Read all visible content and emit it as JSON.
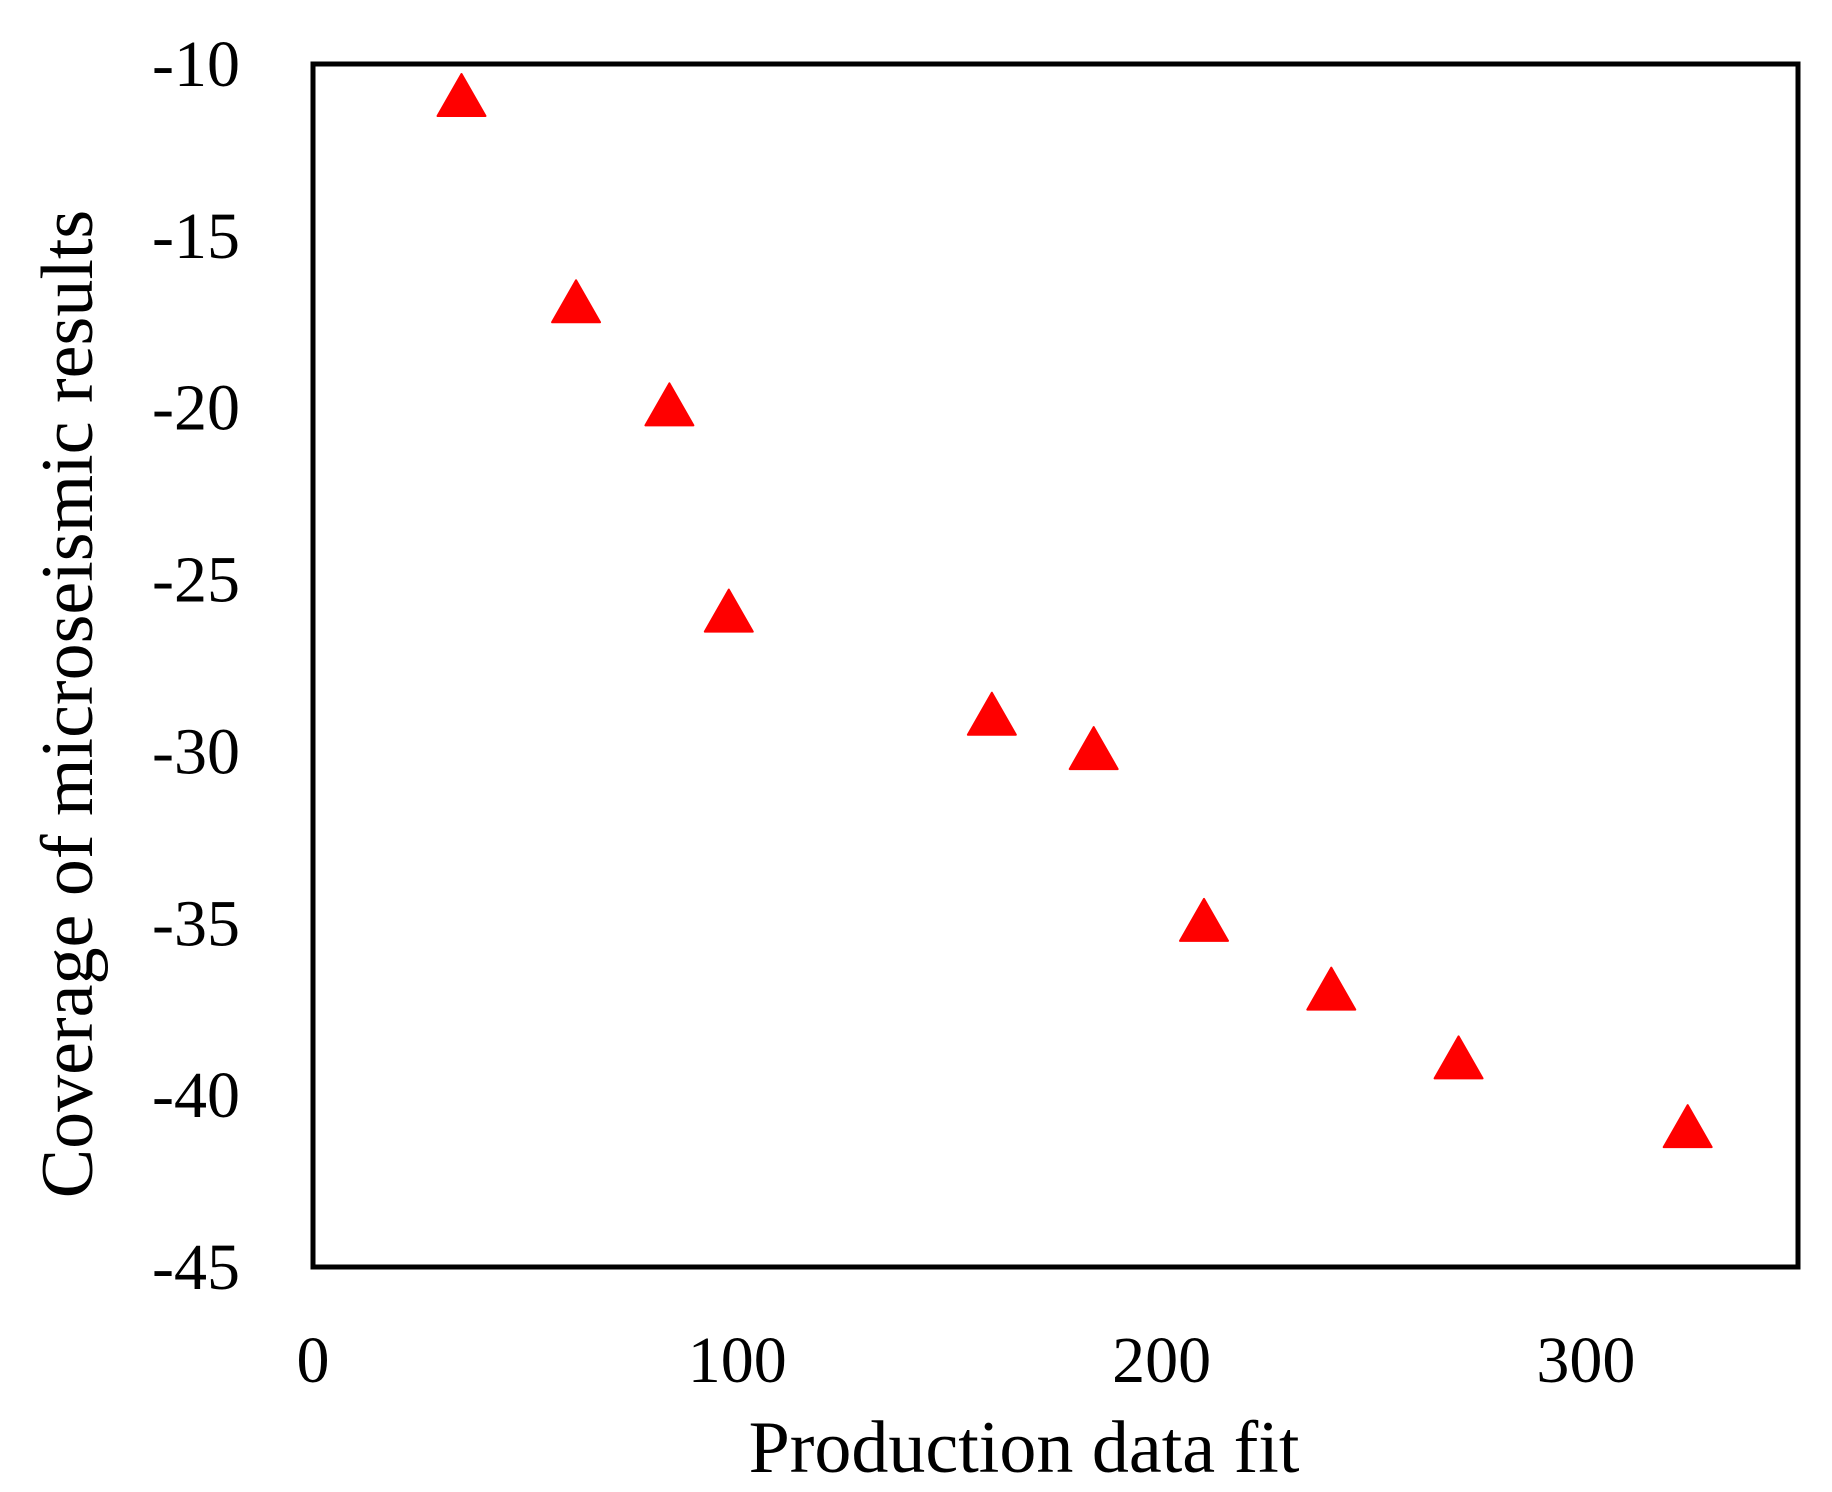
{
  "chart_data": {
    "type": "scatter",
    "title": "",
    "xlabel": "Production data fit",
    "ylabel": "Coverage of microseismic results",
    "xlim": [
      0,
      350
    ],
    "ylim": [
      -45,
      -10
    ],
    "xticks": [
      0,
      100,
      200,
      300
    ],
    "yticks": [
      -10,
      -15,
      -20,
      -25,
      -30,
      -35,
      -40,
      -45
    ],
    "grid": false,
    "legend": "none",
    "series": [
      {
        "marker": "triangle",
        "color": "#ff0000",
        "points": [
          {
            "x": 35,
            "y": -11
          },
          {
            "x": 62,
            "y": -17
          },
          {
            "x": 84,
            "y": -20
          },
          {
            "x": 98,
            "y": -26
          },
          {
            "x": 160,
            "y": -29
          },
          {
            "x": 184,
            "y": -30
          },
          {
            "x": 210,
            "y": -35
          },
          {
            "x": 240,
            "y": -37
          },
          {
            "x": 270,
            "y": -39
          },
          {
            "x": 324,
            "y": -41
          }
        ]
      }
    ]
  }
}
